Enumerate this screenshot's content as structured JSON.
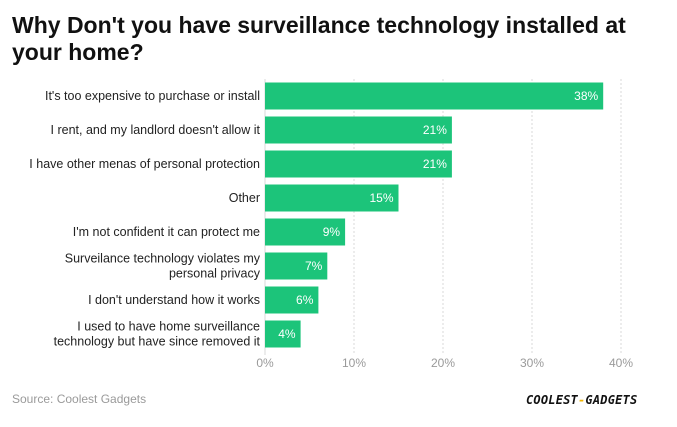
{
  "title": "Why Don't you have surveillance technology installed at your home?",
  "source": "Source: Coolest Gadgets",
  "logo": {
    "left": "COOLEST",
    "dash": "-",
    "right": "GADGETS"
  },
  "colors": {
    "bar": "#1cc47a",
    "grid": "#d9d9d9",
    "tick": "#9a9a9a",
    "label": "#222222",
    "value": "#ffffff"
  },
  "chart_data": {
    "type": "bar",
    "orientation": "horizontal",
    "categories": [
      [
        "It's too expensive to purchase or install"
      ],
      [
        "I rent, and my landlord doesn't allow it"
      ],
      [
        "I have other menas of personal protection"
      ],
      [
        "Other"
      ],
      [
        "I'm not confident it can protect me"
      ],
      [
        "Surveilance technology violates my",
        "personal privacy"
      ],
      [
        "I don't understand how it works"
      ],
      [
        "I used to have home surveillance",
        "technology but have since removed it"
      ]
    ],
    "values": [
      38,
      21,
      21,
      15,
      9,
      7,
      6,
      4
    ],
    "value_labels": [
      "38%",
      "21%",
      "21%",
      "15%",
      "9%",
      "7%",
      "6%",
      "4%"
    ],
    "xlim": [
      0,
      40
    ],
    "xticks": [
      0,
      10,
      20,
      30,
      40
    ],
    "xtick_labels": [
      "0%",
      "10%",
      "20%",
      "30%",
      "40%"
    ],
    "grid": true
  }
}
